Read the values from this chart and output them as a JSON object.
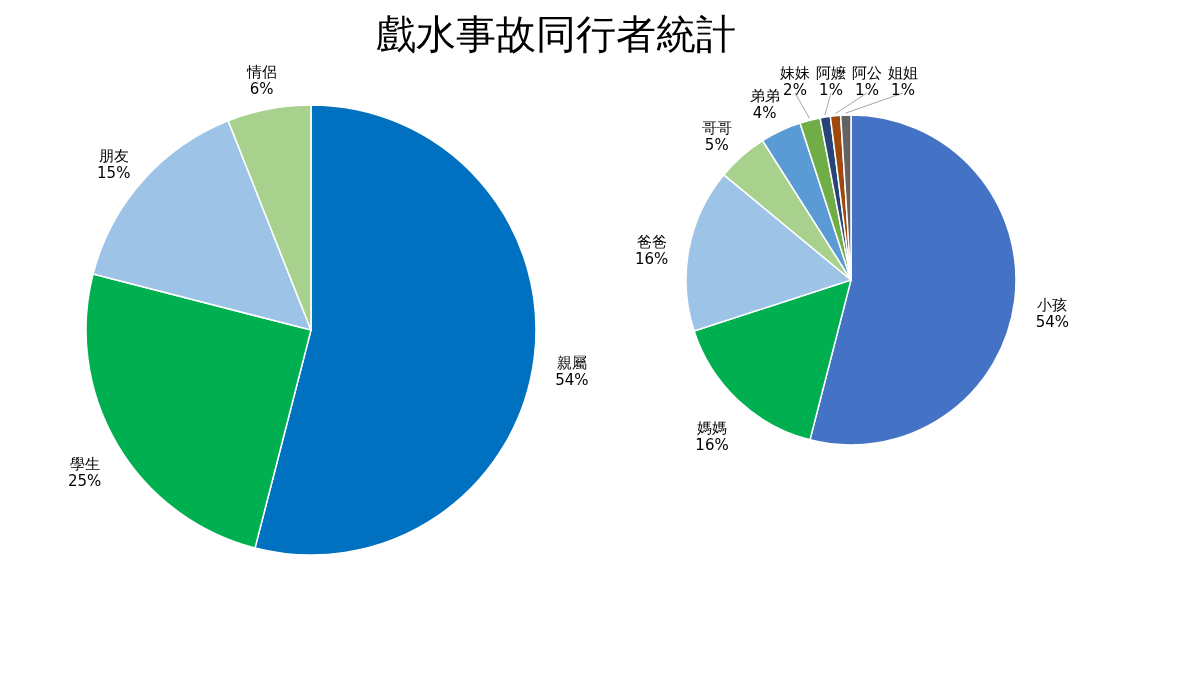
{
  "chart_data": [
    {
      "type": "pie",
      "title": "戲水事故同行者統計",
      "categories": [
        "親屬",
        "學生",
        "朋友",
        "情侶"
      ],
      "values": [
        54,
        25,
        15,
        6
      ],
      "value_labels": [
        "54%",
        "25%",
        "15%",
        "6%"
      ],
      "colors": [
        "#0070c0",
        "#00b050",
        "#9dc3e6",
        "#a9d18e"
      ]
    },
    {
      "type": "pie",
      "categories": [
        "小孩",
        "媽媽",
        "爸爸",
        "哥哥",
        "弟弟",
        "妹妹",
        "阿嬤",
        "阿公",
        "姐姐"
      ],
      "values": [
        54,
        16,
        16,
        5,
        4,
        2,
        1,
        1,
        1
      ],
      "value_labels": [
        "54%",
        "16%",
        "16%",
        "5%",
        "4%",
        "2%",
        "1%",
        "1%",
        "1%"
      ],
      "colors": [
        "#4472c4",
        "#00b050",
        "#9dc3e6",
        "#a9d18e",
        "#5b9bd5",
        "#70ad47",
        "#264478",
        "#9e480e",
        "#636363"
      ]
    }
  ]
}
